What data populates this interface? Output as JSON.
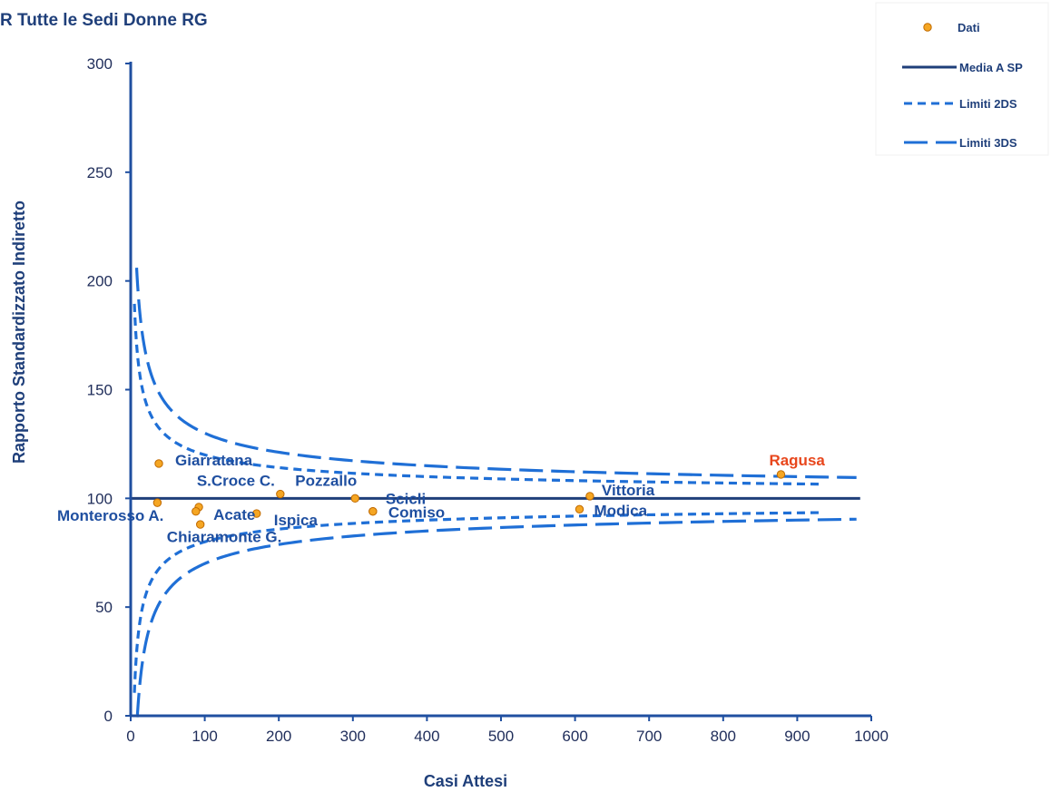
{
  "chart_data": {
    "type": "scatter",
    "title": "R  Tutte le Sedi Donne RG",
    "xlabel": "Casi Attesi",
    "ylabel": "Rapporto Standardizzato Indiretto",
    "xlim": [
      0,
      1000
    ],
    "ylim": [
      0,
      300
    ],
    "xticks": [
      0,
      100,
      200,
      300,
      400,
      500,
      600,
      700,
      800,
      900,
      1000
    ],
    "yticks": [
      0,
      50,
      100,
      150,
      200,
      250,
      300
    ],
    "grid": false,
    "legend_position": "top-right",
    "legend": [
      "Dati",
      "Media A SP",
      "Limiti 2DS",
      "Limiti 3DS"
    ],
    "mean_value": 100,
    "limit_curves": {
      "formula": "100 ± k·100/sqrt(E)",
      "k_2ds": 2,
      "k_3ds": 3,
      "x_start_2ds": 5,
      "x_end_2ds": 930,
      "x_start_3ds": 8,
      "x_end_3ds": 980
    },
    "points": [
      {
        "name": "Giarratana",
        "x": 38,
        "y": 116
      },
      {
        "name": "Monterosso A.",
        "x": 36,
        "y": 98
      },
      {
        "name": "Acate",
        "x": 92,
        "y": 96
      },
      {
        "name": "Chiaramonte G.",
        "x": 88,
        "y": 94
      },
      {
        "name": "",
        "x": 94,
        "y": 88
      },
      {
        "name": "S.Croce C.",
        "x": 202,
        "y": 102
      },
      {
        "name": "Ispica",
        "x": 170,
        "y": 93
      },
      {
        "name": "Pozzallo",
        "x": 303,
        "y": 100
      },
      {
        "name": "Scicli",
        "x": 327,
        "y": 94
      },
      {
        "name": "Comiso",
        "x": 327,
        "y": 94
      },
      {
        "name": "Vittoria",
        "x": 620,
        "y": 101
      },
      {
        "name": "Modica",
        "x": 606,
        "y": 95
      },
      {
        "name": "Ragusa",
        "x": 878,
        "y": 111
      }
    ],
    "highlight_point": "Ragusa",
    "colors": {
      "axis": "#1f4fa0",
      "mean_line": "#1f3f7a",
      "limit_2ds": "#1f6fd6",
      "limit_3ds": "#1f6fd6",
      "point_fill": "#f5a623",
      "point_stroke": "#c06a00",
      "label": "#1f4fa0",
      "highlight_label": "#e8461c"
    }
  }
}
